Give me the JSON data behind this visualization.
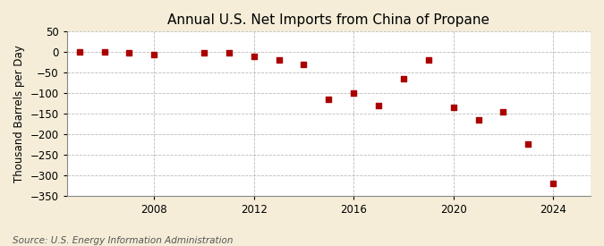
{
  "title": "Annual U.S. Net Imports from China of Propane",
  "ylabel": "Thousand Barrels per Day",
  "source": "Source: U.S. Energy Information Administration",
  "years": [
    2005,
    2006,
    2007,
    2008,
    2010,
    2011,
    2012,
    2013,
    2014,
    2015,
    2016,
    2017,
    2018,
    2019,
    2020,
    2021,
    2022,
    2023,
    2024
  ],
  "values": [
    0,
    0,
    -2,
    -5,
    -2,
    -2,
    -10,
    -20,
    -30,
    -115,
    -100,
    -130,
    -65,
    -20,
    -135,
    -165,
    -145,
    -225,
    -320
  ],
  "marker_color": "#aa0000",
  "marker_size": 5,
  "ylim": [
    -350,
    50
  ],
  "yticks": [
    50,
    0,
    -50,
    -100,
    -150,
    -200,
    -250,
    -300,
    -350
  ],
  "xticks": [
    2008,
    2012,
    2016,
    2020,
    2024
  ],
  "fig_background_color": "#f5edd8",
  "plot_background_color": "#ffffff",
  "grid_color": "#aaaaaa",
  "title_fontsize": 11,
  "label_fontsize": 8.5,
  "tick_fontsize": 8.5,
  "source_fontsize": 7.5,
  "xlim": [
    2004.5,
    2025.5
  ]
}
